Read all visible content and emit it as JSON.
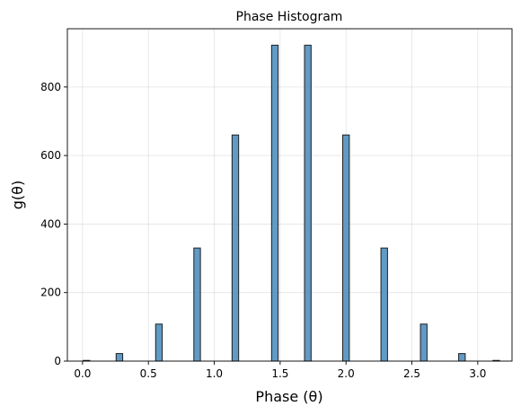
{
  "chart_data": {
    "type": "bar",
    "title": "Phase Histogram",
    "xlabel": "Phase (θ)",
    "ylabel": "g(θ)",
    "xlim": [
      -0.115,
      3.26
    ],
    "ylim": [
      0,
      970
    ],
    "xticks": [
      0.0,
      0.5,
      1.0,
      1.5,
      2.0,
      2.5,
      3.0
    ],
    "xtick_labels": [
      "0.0",
      "0.5",
      "1.0",
      "1.5",
      "2.0",
      "2.5",
      "3.0"
    ],
    "yticks": [
      0,
      200,
      400,
      600,
      800
    ],
    "ytick_labels": [
      "0",
      "200",
      "400",
      "600",
      "800"
    ],
    "grid": true,
    "bin_width": 0.05,
    "series": [
      {
        "x": [
          0.03,
          0.28,
          0.58,
          0.87,
          1.16,
          1.46,
          1.71,
          2.0,
          2.29,
          2.59,
          2.88,
          3.14
        ],
        "values": [
          2,
          22,
          108,
          330,
          660,
          922,
          922,
          660,
          330,
          108,
          22,
          2
        ]
      }
    ],
    "colors": {
      "bar": "#4f8fbf",
      "edge": "#1f1f1f"
    }
  }
}
